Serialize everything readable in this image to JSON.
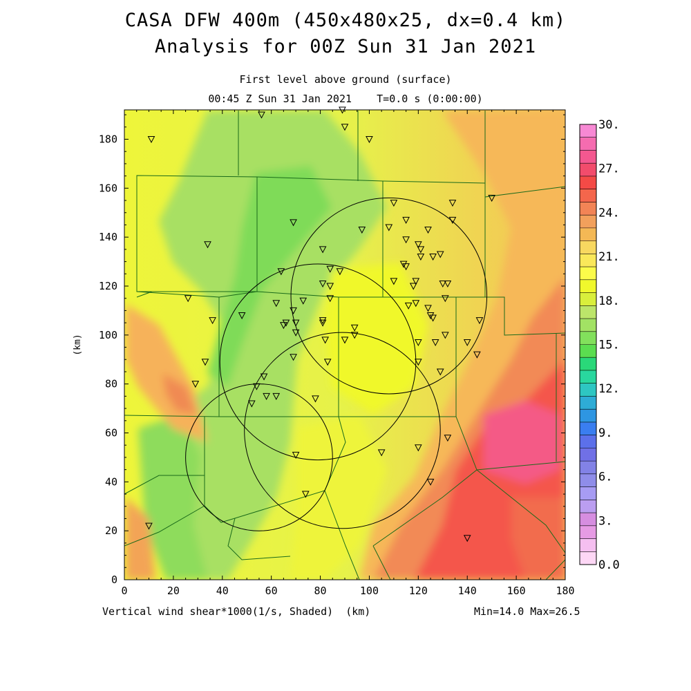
{
  "title": {
    "line1": "CASA DFW 400m (450x480x25, dx=0.4 km)",
    "line2": "Analysis for 00Z Sun 31 Jan 2021"
  },
  "subtitle": {
    "line1": "First level above ground (surface)",
    "line2": "00:45 Z Sun 31 Jan 2021    T=0.0 s (0:00:00)"
  },
  "footer": {
    "left": "Vertical wind shear*1000(1/s, Shaded)  (km)",
    "right": "Min=14.0 Max=26.5"
  },
  "axes": {
    "x_ticks": [
      0,
      20,
      40,
      60,
      80,
      100,
      120,
      140,
      160,
      180
    ],
    "y_ticks": [
      0,
      20,
      40,
      60,
      80,
      100,
      120,
      140,
      160,
      180
    ],
    "ylabel": "(km)",
    "xlim": [
      0,
      180
    ],
    "ylim": [
      0,
      192
    ]
  },
  "colorbar": {
    "labels": [
      "0.0",
      "3.",
      "6.",
      "9.",
      "12.",
      "15.",
      "18.",
      "21.",
      "24.",
      "27.",
      "30."
    ],
    "colors": [
      "#fdd7f5",
      "#f5bff0",
      "#e69be4",
      "#d68ee0",
      "#bb9ef0",
      "#a79cf3",
      "#8f8de9",
      "#8282e6",
      "#7070e6",
      "#5c70ea",
      "#3a7ef0",
      "#2e96e2",
      "#2eacd6",
      "#2ec6c2",
      "#29d79e",
      "#2ad879",
      "#5bdd50",
      "#82e05c",
      "#a2e264",
      "#bce56a",
      "#d9ef3c",
      "#f0f82c",
      "#fbfb4a",
      "#fae85a",
      "#f8d860",
      "#f4b855",
      "#f2a05c",
      "#f28456",
      "#f4664c",
      "#f44a46",
      "#f24c6c",
      "#f45890",
      "#f56cb0",
      "#f789d4"
    ]
  },
  "map": {
    "field_min": 14.0,
    "field_max": 26.5,
    "stations": [
      [
        11,
        180
      ],
      [
        56,
        190
      ],
      [
        89,
        192
      ],
      [
        90,
        185
      ],
      [
        100,
        180
      ],
      [
        110,
        154
      ],
      [
        134,
        154
      ],
      [
        150,
        156
      ],
      [
        115,
        147
      ],
      [
        134,
        147
      ],
      [
        108,
        144
      ],
      [
        97,
        143
      ],
      [
        115,
        139
      ],
      [
        124,
        143
      ],
      [
        120,
        137
      ],
      [
        121,
        135
      ],
      [
        69,
        146
      ],
      [
        34,
        137
      ],
      [
        81,
        135
      ],
      [
        121,
        132
      ],
      [
        126,
        132
      ],
      [
        129,
        133
      ],
      [
        114,
        129
      ],
      [
        115,
        128
      ],
      [
        84,
        127
      ],
      [
        88,
        126
      ],
      [
        64,
        126
      ],
      [
        110,
        122
      ],
      [
        119,
        122
      ],
      [
        118,
        120
      ],
      [
        130,
        121
      ],
      [
        132,
        121
      ],
      [
        81,
        121
      ],
      [
        84,
        120
      ],
      [
        73,
        114
      ],
      [
        84,
        115
      ],
      [
        131,
        115
      ],
      [
        26,
        115
      ],
      [
        62,
        113
      ],
      [
        119,
        113
      ],
      [
        116,
        112
      ],
      [
        124,
        111
      ],
      [
        125,
        108
      ],
      [
        126,
        107
      ],
      [
        36,
        106
      ],
      [
        48,
        108
      ],
      [
        69,
        110
      ],
      [
        81,
        106
      ],
      [
        81,
        105
      ],
      [
        70,
        105
      ],
      [
        65,
        104
      ],
      [
        66,
        105
      ],
      [
        70,
        101
      ],
      [
        94,
        103
      ],
      [
        145,
        106
      ],
      [
        94,
        100
      ],
      [
        90,
        98
      ],
      [
        82,
        98
      ],
      [
        140,
        97
      ],
      [
        120,
        97
      ],
      [
        127,
        97
      ],
      [
        131,
        100
      ],
      [
        69,
        91
      ],
      [
        33,
        89
      ],
      [
        83,
        89
      ],
      [
        120,
        89
      ],
      [
        144,
        92
      ],
      [
        129,
        85
      ],
      [
        29,
        80
      ],
      [
        57,
        83
      ],
      [
        54,
        79
      ],
      [
        58,
        75
      ],
      [
        62,
        75
      ],
      [
        78,
        74
      ],
      [
        52,
        72
      ],
      [
        132,
        58
      ],
      [
        120,
        54
      ],
      [
        105,
        52
      ],
      [
        70,
        51
      ],
      [
        125,
        40
      ],
      [
        74,
        35
      ],
      [
        10,
        22
      ],
      [
        140,
        17
      ]
    ],
    "radar_circles": [
      [
        55,
        50,
        30
      ],
      [
        79,
        89,
        40
      ],
      [
        108,
        116,
        40
      ],
      [
        89,
        61,
        40
      ]
    ]
  }
}
